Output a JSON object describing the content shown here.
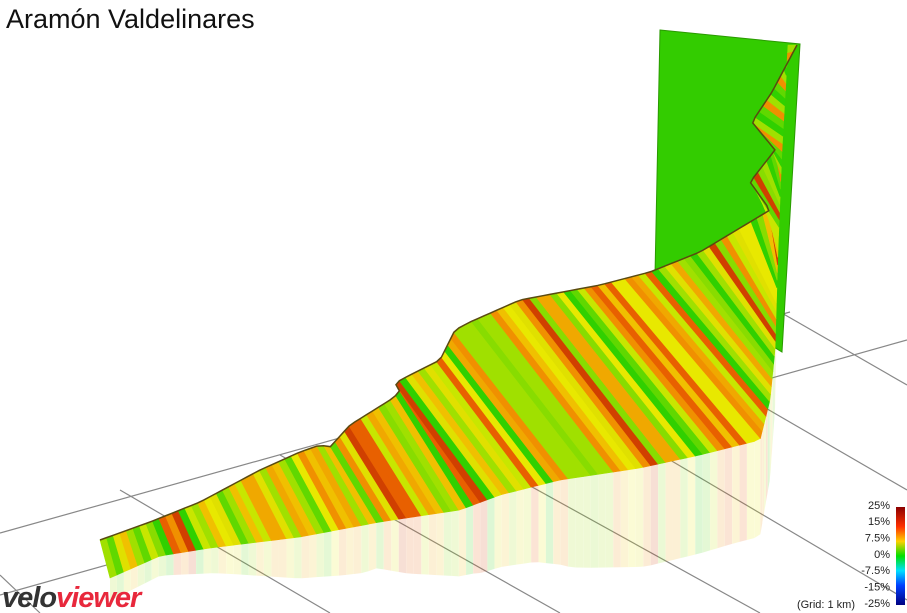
{
  "header": {
    "title": "Aramón Valdelinares"
  },
  "legend": {
    "labels": [
      "25%",
      "15%",
      "7.5%",
      "0%",
      "-7.5%",
      "-15%",
      "-25%"
    ],
    "note": "(Grid: 1 km)"
  },
  "logo": {
    "part1": "velo",
    "part2": "viewer"
  }
}
